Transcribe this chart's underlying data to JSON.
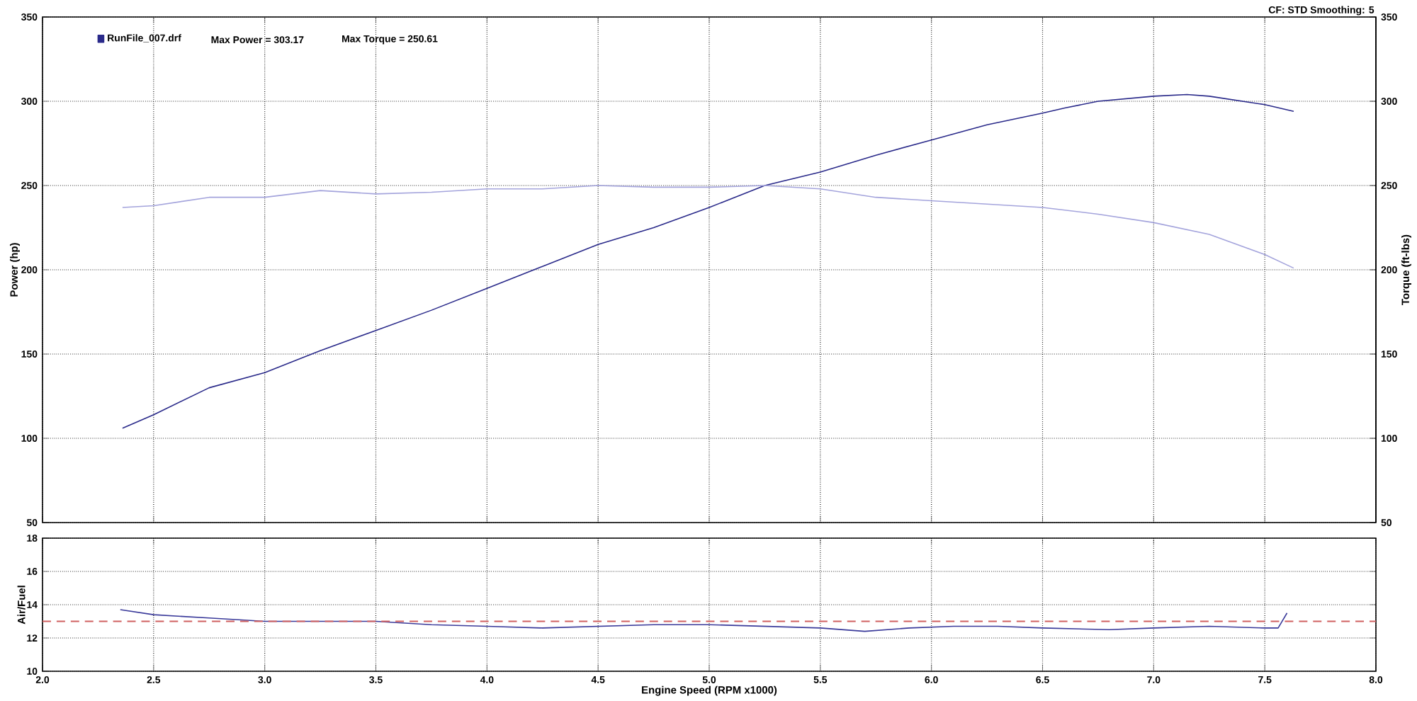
{
  "chart_data": [
    {
      "type": "line",
      "ylabel": "Power (hp)",
      "y2label": "Torque (ft-lbs)",
      "xlim": [
        2.0,
        8.0
      ],
      "ylim": [
        50,
        350
      ],
      "yticks": [
        50,
        100,
        150,
        200,
        250,
        300,
        350
      ],
      "y2lim": [
        50,
        350
      ],
      "y2ticks": [
        50,
        100,
        150,
        200,
        250,
        300,
        350
      ],
      "tick_labels": "y",
      "grid": true,
      "legend": "top left",
      "xticks": [
        2.0,
        2.5,
        3.0,
        3.5,
        4.0,
        4.5,
        5.0,
        5.5,
        6.0,
        6.5,
        7.0,
        7.5,
        8.0
      ],
      "annotations": [
        "Max Power = 303.17",
        "Max Torque = 250.61",
        "CF: STD  Smoothing: 5"
      ],
      "series": [
        {
          "name": "RunFile_007.drf",
          "color": "#2a2a8a",
          "x": [
            2.36,
            2.5,
            2.75,
            3.0,
            3.25,
            3.5,
            3.75,
            4.0,
            4.25,
            4.5,
            4.75,
            5.0,
            5.25,
            5.5,
            5.75,
            6.0,
            6.25,
            6.5,
            6.6,
            6.75,
            7.0,
            7.15,
            7.25,
            7.5,
            7.63
          ],
          "values": [
            106,
            114,
            130,
            139,
            152,
            164,
            176,
            189,
            202,
            215,
            225,
            237,
            250,
            258,
            268,
            277,
            286,
            293,
            296,
            300,
            303,
            304,
            303,
            298,
            294
          ]
        },
        {
          "color": "#a4a4dc",
          "axis": "y2",
          "x": [
            2.36,
            2.5,
            2.75,
            3.0,
            3.25,
            3.5,
            3.75,
            4.0,
            4.25,
            4.5,
            4.75,
            5.0,
            5.25,
            5.5,
            5.75,
            6.0,
            6.25,
            6.5,
            6.75,
            7.0,
            7.25,
            7.5,
            7.63
          ],
          "values": [
            237,
            238,
            243,
            243,
            247,
            245,
            246,
            248,
            248,
            250,
            249,
            249,
            250,
            248,
            243,
            241,
            239,
            237,
            233,
            228,
            221,
            209,
            201
          ]
        }
      ]
    },
    {
      "type": "line",
      "ylabel": "Air/Fuel",
      "xlabel": "Engine Speed (RPM x1000)",
      "xlim": [
        2.0,
        8.0
      ],
      "xticks": [
        {
          "value": 2.0,
          "label": "2.0"
        },
        2.5,
        {
          "value": 3.0,
          "label": "3.0"
        },
        3.5,
        {
          "value": 4.0,
          "label": "4.0"
        },
        4.5,
        {
          "value": 5.0,
          "label": "5.0"
        },
        5.5,
        {
          "value": 6.0,
          "label": "6.0"
        },
        6.5,
        {
          "value": 7.0,
          "label": "7.0"
        },
        7.5,
        {
          "value": 8.0,
          "label": "8.0"
        }
      ],
      "ylim": [
        10,
        18
      ],
      "yticks": [
        10,
        12,
        14,
        16,
        18
      ],
      "grid": true,
      "ref_lines": [
        {
          "axis": "y",
          "value": 13,
          "color": "#d06060",
          "line_style": "dashed"
        }
      ],
      "series": [
        {
          "color": "#3a3a9a",
          "x": [
            2.35,
            2.5,
            2.75,
            3.0,
            3.25,
            3.5,
            3.75,
            4.0,
            4.25,
            4.5,
            4.75,
            5.0,
            5.25,
            5.5,
            5.7,
            5.9,
            6.1,
            6.3,
            6.5,
            6.8,
            7.0,
            7.25,
            7.5,
            7.56,
            7.6
          ],
          "values": [
            13.7,
            13.4,
            13.2,
            13.0,
            13.0,
            13.0,
            12.8,
            12.7,
            12.6,
            12.7,
            12.8,
            12.8,
            12.7,
            12.6,
            12.4,
            12.6,
            12.7,
            12.7,
            12.6,
            12.5,
            12.6,
            12.7,
            12.6,
            12.6,
            13.5
          ]
        }
      ]
    }
  ]
}
